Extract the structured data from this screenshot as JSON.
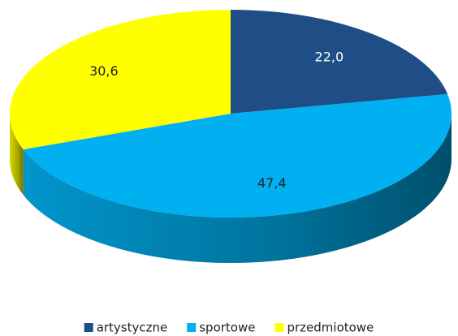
{
  "chart_data": {
    "type": "pie3d",
    "categories": [
      "artystyczne",
      "sportowe",
      "przedmiotowe"
    ],
    "values": [
      22.0,
      47.4,
      30.6
    ],
    "value_labels": [
      "22,0",
      "47,4",
      "30,6"
    ],
    "colors": [
      "#1f4e86",
      "#00b0f0",
      "#ffff00"
    ],
    "legend": "bottom"
  }
}
